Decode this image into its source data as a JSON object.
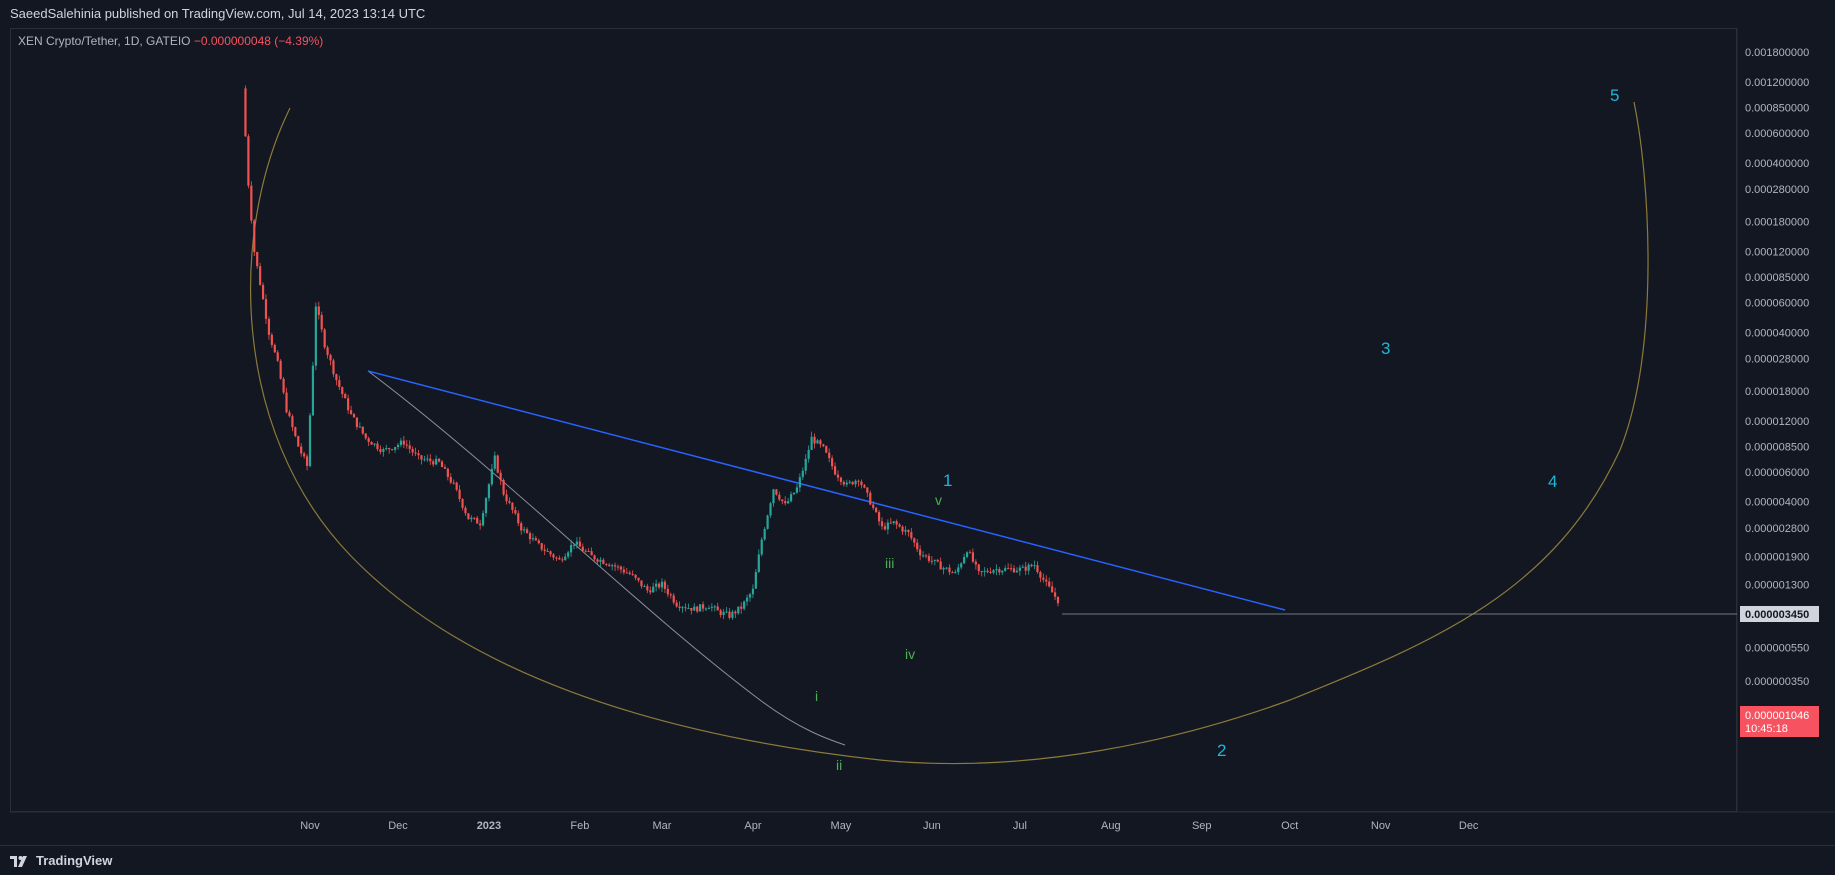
{
  "header": {
    "published_text": "SaeedSalehinia published on TradingView.com, Jul 14, 2023 13:14 UTC"
  },
  "symbol": {
    "name": "XEN Crypto/Tether, 1D, GATEIO",
    "change": "−0.000000048 (−4.39%)"
  },
  "footer": {
    "brand": "TradingView"
  },
  "colors": {
    "background": "#131722",
    "up": "#26a69a",
    "down": "#ef5350",
    "trendline": "#2962ff",
    "arc": "#8c7a3a",
    "wave_major": "#1fb6d8",
    "wave_minor": "#4caf50",
    "price_badge": "#f7525f",
    "ref_badge": "#d1d4dc"
  },
  "chart_data": {
    "type": "candlestick",
    "yscale": "log",
    "price_axis_labels": [
      "0.001800000",
      "0.001200000",
      "0.000850000",
      "0.000600000",
      "0.000400000",
      "0.000280000",
      "0.000180000",
      "0.000120000",
      "0.000085000",
      "0.000060000",
      "0.000040000",
      "0.000028000",
      "0.000018000",
      "0.000012000",
      "0.000008500",
      "0.000006000",
      "0.000004000",
      "0.000002800",
      "0.000001900",
      "0.000001300",
      "0.000000550",
      "0.000000350"
    ],
    "time_axis_labels": [
      "Nov",
      "Dec",
      "2023",
      "Feb",
      "Mar",
      "Apr",
      "May",
      "Jun",
      "Jul",
      "Aug",
      "Sep",
      "Oct",
      "Nov",
      "Dec"
    ],
    "current_price": {
      "value": "0.000001046",
      "countdown": "10:45:18"
    },
    "reference_price": {
      "value": "0.000003450"
    },
    "wave_labels_major": [
      "1",
      "2",
      "3",
      "4",
      "5"
    ],
    "wave_labels_minor": [
      "i",
      "ii",
      "iii",
      "iv",
      "v"
    ],
    "close_path": [
      [
        "2022-10-09",
        0.0011
      ],
      [
        "2022-10-11",
        0.0003
      ],
      [
        "2022-10-13",
        0.00012
      ],
      [
        "2022-10-15",
        7.8e-05
      ],
      [
        "2022-10-18",
        4e-05
      ],
      [
        "2022-10-21",
        2.6e-05
      ],
      [
        "2022-10-24",
        1.4e-05
      ],
      [
        "2022-10-28",
        8.5e-06
      ],
      [
        "2022-10-31",
        6.5e-06
      ],
      [
        "2022-11-02",
        2.6e-05
      ],
      [
        "2022-11-03",
        5.8e-05
      ],
      [
        "2022-11-06",
        3.4e-05
      ],
      [
        "2022-11-10",
        2.1e-05
      ],
      [
        "2022-11-15",
        1.3e-05
      ],
      [
        "2022-11-20",
        9.5e-06
      ],
      [
        "2022-11-26",
        8e-06
      ],
      [
        "2022-12-03",
        9e-06
      ],
      [
        "2022-12-08",
        7.2e-06
      ],
      [
        "2022-12-15",
        6.8e-06
      ],
      [
        "2022-12-20",
        5e-06
      ],
      [
        "2022-12-25",
        3.2e-06
      ],
      [
        "2022-12-29",
        3e-06
      ],
      [
        "2023-01-03",
        7.2e-06
      ],
      [
        "2023-01-06",
        4.5e-06
      ],
      [
        "2023-01-12",
        2.8e-06
      ],
      [
        "2023-01-18",
        2.2e-06
      ],
      [
        "2023-01-25",
        1.8e-06
      ],
      [
        "2023-01-30",
        2.3e-06
      ],
      [
        "2023-02-05",
        1.9e-06
      ],
      [
        "2023-02-12",
        1.7e-06
      ],
      [
        "2023-02-18",
        1.5e-06
      ],
      [
        "2023-02-24",
        1.2e-06
      ],
      [
        "2023-03-01",
        1.3e-06
      ],
      [
        "2023-03-06",
        1e-06
      ],
      [
        "2023-03-12",
        9.3e-07
      ],
      [
        "2023-03-17",
        9.8e-07
      ],
      [
        "2023-03-20",
        9e-07
      ],
      [
        "2023-03-24",
        8.5e-07
      ],
      [
        "2023-03-28",
        9.5e-07
      ],
      [
        "2023-04-01",
        1.2e-06
      ],
      [
        "2023-04-04",
        2.4e-06
      ],
      [
        "2023-04-08",
        4.8e-06
      ],
      [
        "2023-04-12",
        3.8e-06
      ],
      [
        "2023-04-16",
        4.8e-06
      ],
      [
        "2023-04-19",
        7e-06
      ],
      [
        "2023-04-21",
        9.5e-06
      ],
      [
        "2023-04-25",
        8.2e-06
      ],
      [
        "2023-04-29",
        6e-06
      ],
      [
        "2023-05-03",
        5e-06
      ],
      [
        "2023-05-07",
        5.5e-06
      ],
      [
        "2023-05-11",
        4e-06
      ],
      [
        "2023-05-15",
        2.8e-06
      ],
      [
        "2023-05-19",
        3e-06
      ],
      [
        "2023-05-24",
        2.6e-06
      ],
      [
        "2023-05-28",
        2e-06
      ],
      [
        "2023-06-03",
        1.7e-06
      ],
      [
        "2023-06-09",
        1.5e-06
      ],
      [
        "2023-06-13",
        2.1e-06
      ],
      [
        "2023-06-17",
        1.5e-06
      ],
      [
        "2023-06-22",
        1.6e-06
      ],
      [
        "2023-06-27",
        1.6e-06
      ],
      [
        "2023-07-02",
        1.6e-06
      ],
      [
        "2023-07-06",
        1.7e-06
      ],
      [
        "2023-07-10",
        1.3e-06
      ],
      [
        "2023-07-14",
        1.046e-06
      ]
    ]
  }
}
